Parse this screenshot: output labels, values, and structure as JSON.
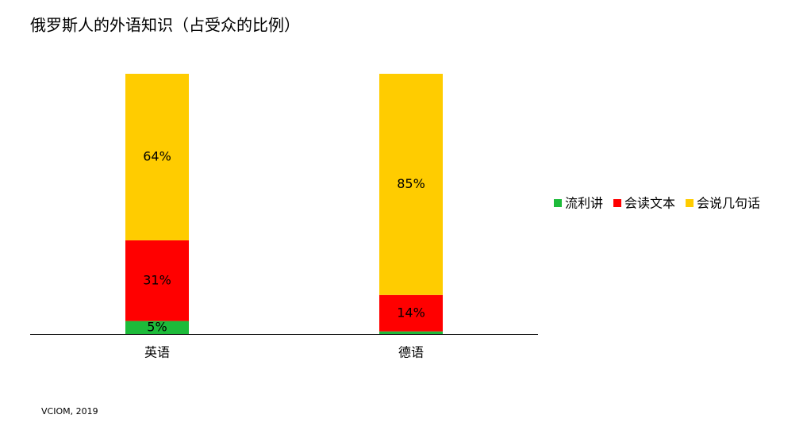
{
  "chart_data": {
    "type": "stacked_bar",
    "title": "俄罗斯人的外语知识（占受众的比例）",
    "categories": [
      "英语",
      "德语"
    ],
    "series": [
      {
        "name": "流利讲",
        "color": "#1dbb3a",
        "values": [
          5,
          1
        ],
        "value_labels": [
          "5%",
          null
        ]
      },
      {
        "name": "会读文本",
        "color": "#ff0000",
        "values": [
          31,
          14
        ],
        "value_labels": [
          "31%",
          "14%"
        ]
      },
      {
        "name": "会说几句话",
        "color": "#ffcc00",
        "values": [
          64,
          85
        ],
        "value_labels": [
          "64%",
          "85%"
        ]
      }
    ],
    "ylim": [
      0,
      100
    ],
    "legend": "right",
    "source": "VCIOM, 2019"
  }
}
